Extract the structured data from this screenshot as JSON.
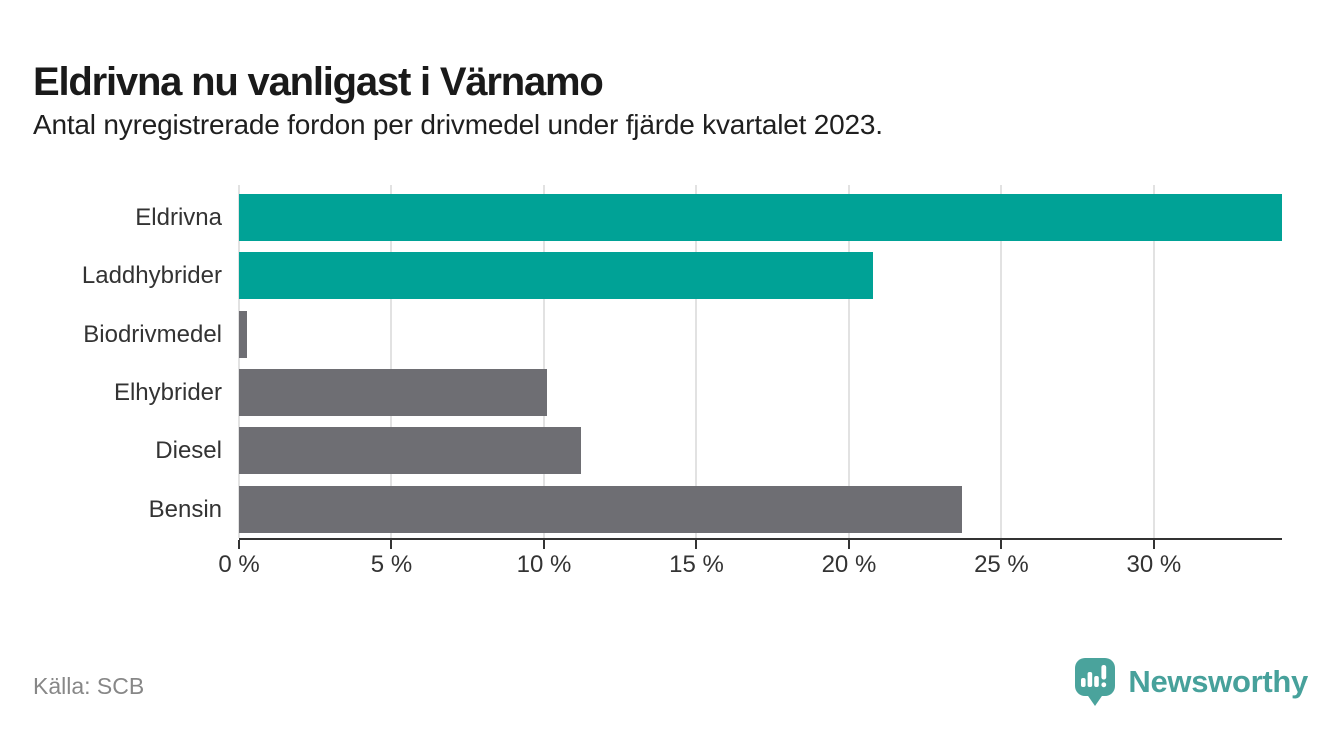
{
  "header": {
    "title": "Eldrivna nu vanligast i Värnamo",
    "subtitle": "Antal nyregistrerade fordon per drivmedel under fjärde kvartalet 2023."
  },
  "chart_data": {
    "type": "bar",
    "orientation": "horizontal",
    "title": "Eldrivna nu vanligast i Värnamo",
    "subtitle": "Antal nyregistrerade fordon per drivmedel under fjärde kvartalet 2023.",
    "categories": [
      "Eldrivna",
      "Laddhybrider",
      "Biodrivmedel",
      "Elhybrider",
      "Diesel",
      "Bensin"
    ],
    "values": [
      34.2,
      20.8,
      0.25,
      10.1,
      11.2,
      23.7
    ],
    "unit": "%",
    "bar_colors": [
      "#00A296",
      "#00A296",
      "#6E6E73",
      "#6E6E73",
      "#6E6E73",
      "#6E6E73"
    ],
    "highlight_color": "#00A296",
    "base_color": "#6E6E73",
    "x_ticks": [
      0,
      5,
      10,
      15,
      20,
      25,
      30
    ],
    "x_tick_labels": [
      "0 %",
      "5 %",
      "10 %",
      "15 %",
      "20 %",
      "25 %",
      "30 %"
    ],
    "xlim": [
      0,
      34.2
    ],
    "grid": "vertical",
    "gridline_color": "#e2e2e2",
    "axis_color": "#333333",
    "legend": "none"
  },
  "footer": {
    "source": "Källa: SCB",
    "brand": "Newsworthy",
    "brand_color": "#47a19b"
  }
}
